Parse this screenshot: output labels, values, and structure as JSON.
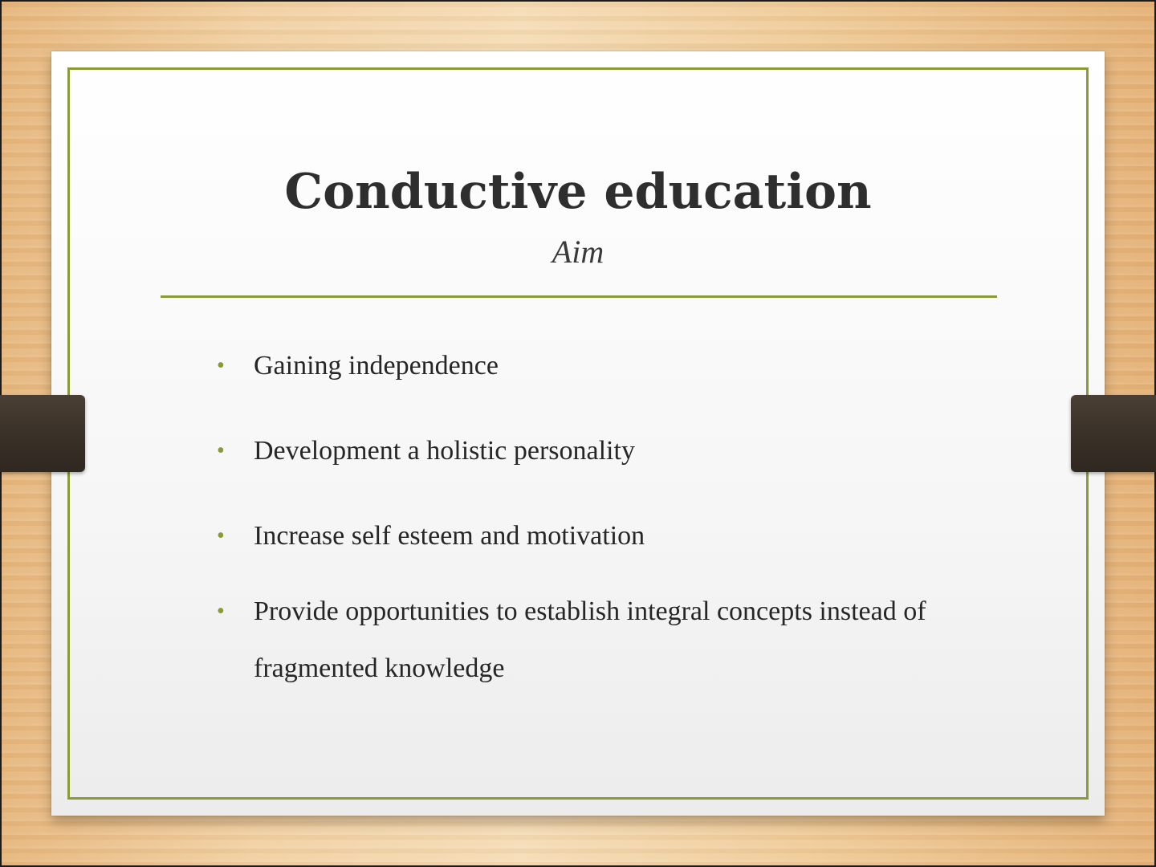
{
  "slide": {
    "title": "Conductive education",
    "subtitle": "Aim",
    "bullet_glyph": "•",
    "bullets": [
      "Gaining independence",
      "Development a holistic personality",
      "Increase self esteem and motivation",
      "Provide opportunities to establish integral concepts instead of fragmented knowledge"
    ],
    "colors": {
      "accent": "#8b9a37",
      "title": "#2e2e2e",
      "strap": "#3a3128"
    }
  }
}
